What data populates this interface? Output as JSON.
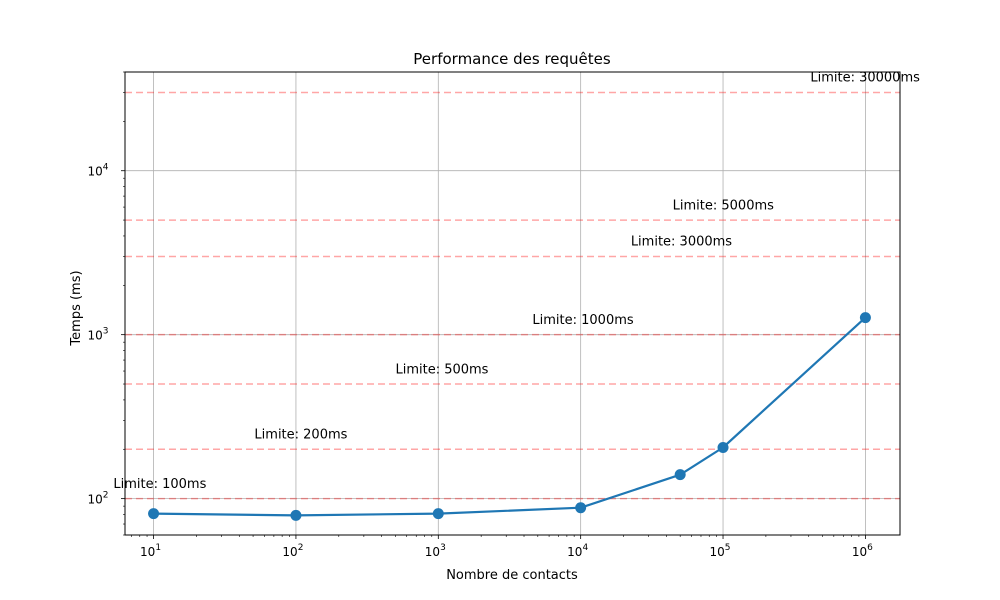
{
  "chart_data": {
    "type": "line",
    "title": "Performance des requêtes",
    "xlabel": "Nombre de contacts",
    "ylabel": "Temps (ms)",
    "xscale": "log",
    "yscale": "log",
    "xlim": [
      6.3,
      1750000
    ],
    "ylim": [
      60,
      40000
    ],
    "grid": true,
    "x_ticks": [
      {
        "base": "10",
        "exp": "1",
        "value": 10
      },
      {
        "base": "10",
        "exp": "2",
        "value": 100
      },
      {
        "base": "10",
        "exp": "3",
        "value": 1000
      },
      {
        "base": "10",
        "exp": "4",
        "value": 10000
      },
      {
        "base": "10",
        "exp": "5",
        "value": 100000
      },
      {
        "base": "10",
        "exp": "6",
        "value": 1000000
      }
    ],
    "y_ticks": [
      {
        "base": "10",
        "exp": "2",
        "value": 100
      },
      {
        "base": "10",
        "exp": "3",
        "value": 1000
      },
      {
        "base": "10",
        "exp": "4",
        "value": 10000
      }
    ],
    "series": [
      {
        "color": "#1f77b4",
        "x": [
          10,
          100,
          1000,
          10000,
          50000,
          100000,
          1000000
        ],
        "y": [
          81,
          79,
          81,
          88,
          140,
          205,
          1270
        ]
      }
    ],
    "thresholds": [
      {
        "value": 100,
        "label": "Limite: 100ms",
        "label_x": 1000,
        "label_y": 123
      },
      {
        "value": 200,
        "label": "Limite: 200ms",
        "label_x": 10000,
        "label_y": 246
      },
      {
        "value": 500,
        "label": "Limite: 500ms",
        "label_x": 100000,
        "label_y": 615
      },
      {
        "value": 1000,
        "label": "Limite: 1000ms",
        "label_x": 1000000,
        "label_y": 1230
      },
      {
        "value": 3000,
        "label": "Limite: 3000ms",
        "label_x": 10000000,
        "label_y": 3690
      },
      {
        "value": 5000,
        "label": "Limite: 5000ms",
        "label_x": 100000000,
        "label_y": 6150
      },
      {
        "value": 30000,
        "label": "Limite: 30000ms",
        "label_x": 1000000000,
        "label_y": 36900
      }
    ],
    "threshold_color": "#ff0000"
  }
}
